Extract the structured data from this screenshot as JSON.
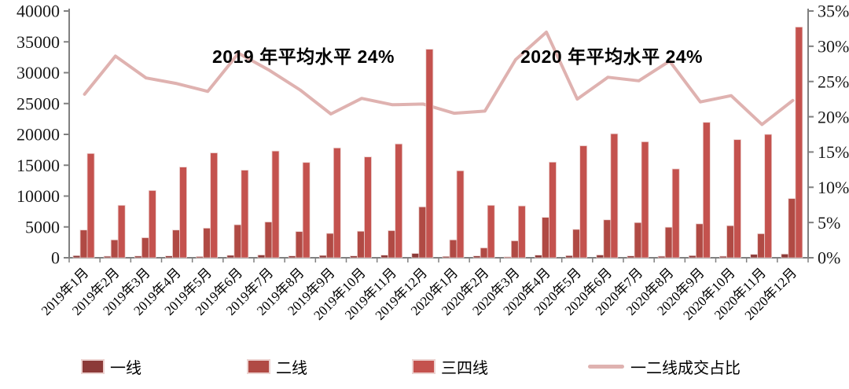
{
  "chart_data": {
    "type": "bar+line combo",
    "title": "",
    "categories": [
      "2019年1月",
      "2019年2月",
      "2019年3月",
      "2019年4月",
      "2019年5月",
      "2019年6月",
      "2019年7月",
      "2019年8月",
      "2019年9月",
      "2019年10月",
      "2019年11月",
      "2019年12月",
      "2020年1月",
      "2020年2月",
      "2020年3月",
      "2020年4月",
      "2020年5月",
      "2020年6月",
      "2020年7月",
      "2020年8月",
      "2020年9月",
      "2020年10月",
      "2020年11月",
      "2020年12月"
    ],
    "series": [
      {
        "name": "一线",
        "type": "bar",
        "axis": "left",
        "color": "#8c3a38",
        "values": [
          350,
          250,
          280,
          300,
          200,
          400,
          450,
          300,
          380,
          300,
          430,
          700,
          220,
          300,
          150,
          430,
          350,
          450,
          300,
          250,
          350,
          250,
          550,
          600
        ]
      },
      {
        "name": "二线",
        "type": "bar",
        "axis": "left",
        "color": "#b04a44",
        "values": [
          4500,
          2900,
          3250,
          4500,
          4800,
          5350,
          5800,
          4250,
          3950,
          4300,
          4400,
          8250,
          2900,
          1600,
          2750,
          6550,
          4600,
          6150,
          5700,
          4950,
          5500,
          5200,
          3900,
          9600
        ]
      },
      {
        "name": "三四线",
        "type": "bar",
        "axis": "left",
        "color": "#c4524e",
        "values": [
          16900,
          8500,
          10900,
          14700,
          17000,
          14200,
          17300,
          15450,
          17800,
          16350,
          18450,
          33800,
          14100,
          8500,
          8400,
          15500,
          18150,
          20100,
          18800,
          14400,
          21950,
          19150,
          20000,
          37400
        ]
      },
      {
        "name": "一二线成交占比",
        "type": "line",
        "axis": "right",
        "color": "#dfb2b0",
        "unit": "%",
        "values": [
          23.2,
          28.6,
          25.5,
          24.7,
          23.6,
          29.0,
          26.6,
          23.8,
          20.4,
          22.6,
          21.7,
          21.8,
          20.5,
          20.8,
          28.1,
          32.0,
          22.5,
          25.6,
          25.1,
          27.9,
          22.1,
          23.0,
          18.9,
          22.3
        ]
      }
    ],
    "left_axis": {
      "min": 0,
      "max": 40000,
      "step": 5000,
      "tick_labels": [
        "0",
        "5000",
        "10000",
        "15000",
        "20000",
        "25000",
        "30000",
        "35000",
        "40000"
      ]
    },
    "right_axis": {
      "min": 0,
      "max": 35,
      "step": 5,
      "tick_labels": [
        "0%",
        "5%",
        "10%",
        "15%",
        "20%",
        "25%",
        "30%",
        "35%"
      ]
    },
    "annotations": [
      {
        "text": "2019 年平均水平 24%",
        "anchor_month": "2019年6月"
      },
      {
        "text": "2020 年平均水平 24%",
        "anchor_month": "2020年6月"
      }
    ],
    "legend_position": "bottom",
    "grid": false,
    "axis_line_color": "#808080",
    "tick_label_color": "#1a1a1a"
  }
}
